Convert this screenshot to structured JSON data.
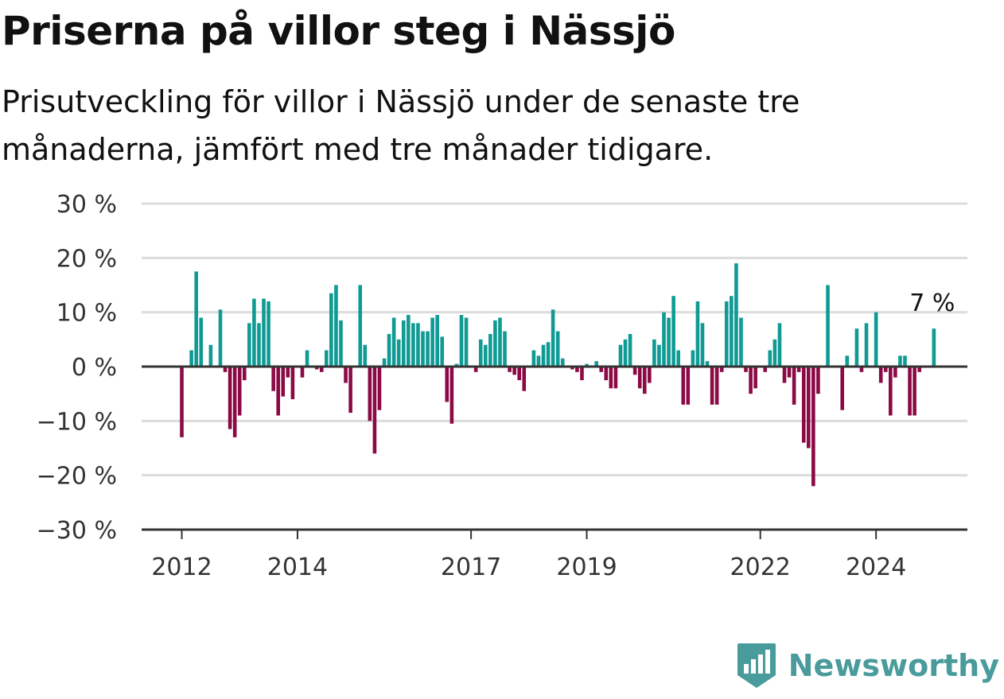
{
  "header": {
    "title": "Priserna på villor steg i Nässjö",
    "subtitle": "Prisutveckling för villor i Nässjö under de senaste tre månaderna, jämfört med tre månader tidigare."
  },
  "brand": {
    "name": "Newsworthy",
    "color": "#4a9b9c"
  },
  "colors": {
    "positive": "#0f9a94",
    "negative": "#8b0a45",
    "grid": "#dcdcdc",
    "axis": "#333333"
  },
  "chart_data": {
    "type": "bar",
    "title": "Priserna på villor steg i Nässjö",
    "subtitle": "Prisutveckling för villor i Nässjö under de senaste tre månaderna, jämfört med tre månader tidigare.",
    "x_start": "2012-01",
    "x_end": "2025-03",
    "x_ticks": [
      {
        "date": "2012-01",
        "label": "2012"
      },
      {
        "date": "2014-01",
        "label": "2014"
      },
      {
        "date": "2017-01",
        "label": "2017"
      },
      {
        "date": "2019-01",
        "label": "2019"
      },
      {
        "date": "2022-01",
        "label": "2022"
      },
      {
        "date": "2024-01",
        "label": "2024"
      }
    ],
    "y_ticks": [
      {
        "value": 30,
        "label": "30 %"
      },
      {
        "value": 20,
        "label": "20 %"
      },
      {
        "value": 10,
        "label": "10 %"
      },
      {
        "value": 0,
        "label": "0 %"
      },
      {
        "value": -10,
        "label": "−10 %"
      },
      {
        "value": -20,
        "label": "−20 %"
      },
      {
        "value": -30,
        "label": "−30 %"
      }
    ],
    "ylim": [
      -30,
      30
    ],
    "grid": true,
    "annotation": {
      "date": "2025-01",
      "value": 7,
      "label": "7 %"
    },
    "series": [
      {
        "values": [
          {
            "date": "2012-01",
            "value": -13
          },
          {
            "date": "2012-03",
            "value": 3
          },
          {
            "date": "2012-04",
            "value": 17.5
          },
          {
            "date": "2012-05",
            "value": 9
          },
          {
            "date": "2012-07",
            "value": 4
          },
          {
            "date": "2012-09",
            "value": 10.5
          },
          {
            "date": "2012-10",
            "value": -1
          },
          {
            "date": "2012-11",
            "value": -11.5
          },
          {
            "date": "2012-12",
            "value": -13
          },
          {
            "date": "2013-01",
            "value": -9
          },
          {
            "date": "2013-02",
            "value": -2.5
          },
          {
            "date": "2013-03",
            "value": 8
          },
          {
            "date": "2013-04",
            "value": 12.5
          },
          {
            "date": "2013-05",
            "value": 8
          },
          {
            "date": "2013-06",
            "value": 12.5
          },
          {
            "date": "2013-07",
            "value": 12
          },
          {
            "date": "2013-08",
            "value": -4.5
          },
          {
            "date": "2013-09",
            "value": -9
          },
          {
            "date": "2013-10",
            "value": -5.5
          },
          {
            "date": "2013-11",
            "value": -2
          },
          {
            "date": "2013-12",
            "value": -6
          },
          {
            "date": "2014-02",
            "value": -2
          },
          {
            "date": "2014-03",
            "value": 3
          },
          {
            "date": "2014-05",
            "value": -0.5
          },
          {
            "date": "2014-06",
            "value": -1
          },
          {
            "date": "2014-07",
            "value": 3
          },
          {
            "date": "2014-08",
            "value": 13.5
          },
          {
            "date": "2014-09",
            "value": 15
          },
          {
            "date": "2014-10",
            "value": 8.5
          },
          {
            "date": "2014-11",
            "value": -3
          },
          {
            "date": "2014-12",
            "value": -8.5
          },
          {
            "date": "2015-02",
            "value": 15
          },
          {
            "date": "2015-03",
            "value": 4
          },
          {
            "date": "2015-04",
            "value": -10
          },
          {
            "date": "2015-05",
            "value": -16
          },
          {
            "date": "2015-06",
            "value": -8
          },
          {
            "date": "2015-07",
            "value": 1.5
          },
          {
            "date": "2015-08",
            "value": 6
          },
          {
            "date": "2015-09",
            "value": 9
          },
          {
            "date": "2015-10",
            "value": 5
          },
          {
            "date": "2015-11",
            "value": 8.5
          },
          {
            "date": "2015-12",
            "value": 9.5
          },
          {
            "date": "2016-01",
            "value": 8
          },
          {
            "date": "2016-02",
            "value": 8
          },
          {
            "date": "2016-03",
            "value": 6.5
          },
          {
            "date": "2016-04",
            "value": 6.5
          },
          {
            "date": "2016-05",
            "value": 9
          },
          {
            "date": "2016-06",
            "value": 9.5
          },
          {
            "date": "2016-07",
            "value": 5.5
          },
          {
            "date": "2016-08",
            "value": -6.5
          },
          {
            "date": "2016-09",
            "value": -10.5
          },
          {
            "date": "2016-10",
            "value": 0.5
          },
          {
            "date": "2016-11",
            "value": 9.5
          },
          {
            "date": "2016-12",
            "value": 9
          },
          {
            "date": "2017-02",
            "value": -1
          },
          {
            "date": "2017-03",
            "value": 5
          },
          {
            "date": "2017-04",
            "value": 4
          },
          {
            "date": "2017-05",
            "value": 6
          },
          {
            "date": "2017-06",
            "value": 8.5
          },
          {
            "date": "2017-07",
            "value": 9
          },
          {
            "date": "2017-08",
            "value": 6.5
          },
          {
            "date": "2017-09",
            "value": -1
          },
          {
            "date": "2017-10",
            "value": -1.5
          },
          {
            "date": "2017-11",
            "value": -2.5
          },
          {
            "date": "2017-12",
            "value": -4.5
          },
          {
            "date": "2018-02",
            "value": 3
          },
          {
            "date": "2018-03",
            "value": 2
          },
          {
            "date": "2018-04",
            "value": 4
          },
          {
            "date": "2018-05",
            "value": 4.5
          },
          {
            "date": "2018-06",
            "value": 10.5
          },
          {
            "date": "2018-07",
            "value": 6.5
          },
          {
            "date": "2018-08",
            "value": 1.5
          },
          {
            "date": "2018-10",
            "value": -0.5
          },
          {
            "date": "2018-11",
            "value": -1
          },
          {
            "date": "2018-12",
            "value": -2.5
          },
          {
            "date": "2019-01",
            "value": 0.5
          },
          {
            "date": "2019-03",
            "value": 1
          },
          {
            "date": "2019-04",
            "value": -1
          },
          {
            "date": "2019-05",
            "value": -2.5
          },
          {
            "date": "2019-06",
            "value": -4
          },
          {
            "date": "2019-07",
            "value": -4
          },
          {
            "date": "2019-08",
            "value": 4
          },
          {
            "date": "2019-09",
            "value": 5
          },
          {
            "date": "2019-10",
            "value": 6
          },
          {
            "date": "2019-11",
            "value": -1.5
          },
          {
            "date": "2019-12",
            "value": -4
          },
          {
            "date": "2020-01",
            "value": -5
          },
          {
            "date": "2020-02",
            "value": -3
          },
          {
            "date": "2020-03",
            "value": 5
          },
          {
            "date": "2020-04",
            "value": 4
          },
          {
            "date": "2020-05",
            "value": 10
          },
          {
            "date": "2020-06",
            "value": 9
          },
          {
            "date": "2020-07",
            "value": 13
          },
          {
            "date": "2020-08",
            "value": 3
          },
          {
            "date": "2020-09",
            "value": -7
          },
          {
            "date": "2020-10",
            "value": -7
          },
          {
            "date": "2020-11",
            "value": 3
          },
          {
            "date": "2020-12",
            "value": 12
          },
          {
            "date": "2021-01",
            "value": 8
          },
          {
            "date": "2021-02",
            "value": 1
          },
          {
            "date": "2021-03",
            "value": -7
          },
          {
            "date": "2021-04",
            "value": -7
          },
          {
            "date": "2021-05",
            "value": -1
          },
          {
            "date": "2021-06",
            "value": 12
          },
          {
            "date": "2021-07",
            "value": 13
          },
          {
            "date": "2021-08",
            "value": 19
          },
          {
            "date": "2021-09",
            "value": 9
          },
          {
            "date": "2021-10",
            "value": -1
          },
          {
            "date": "2021-11",
            "value": -5
          },
          {
            "date": "2021-12",
            "value": -4
          },
          {
            "date": "2022-02",
            "value": -1
          },
          {
            "date": "2022-03",
            "value": 3
          },
          {
            "date": "2022-04",
            "value": 5
          },
          {
            "date": "2022-05",
            "value": 8
          },
          {
            "date": "2022-06",
            "value": -3
          },
          {
            "date": "2022-07",
            "value": -2
          },
          {
            "date": "2022-08",
            "value": -7
          },
          {
            "date": "2022-09",
            "value": -1
          },
          {
            "date": "2022-10",
            "value": -14
          },
          {
            "date": "2022-11",
            "value": -15
          },
          {
            "date": "2022-12",
            "value": -22
          },
          {
            "date": "2023-01",
            "value": -5
          },
          {
            "date": "2023-03",
            "value": 15
          },
          {
            "date": "2023-06",
            "value": -8
          },
          {
            "date": "2023-07",
            "value": 2
          },
          {
            "date": "2023-09",
            "value": 7
          },
          {
            "date": "2023-10",
            "value": -1
          },
          {
            "date": "2023-11",
            "value": 8
          },
          {
            "date": "2024-01",
            "value": 10
          },
          {
            "date": "2024-02",
            "value": -3
          },
          {
            "date": "2024-03",
            "value": -1
          },
          {
            "date": "2024-04",
            "value": -9
          },
          {
            "date": "2024-05",
            "value": -2
          },
          {
            "date": "2024-06",
            "value": 2
          },
          {
            "date": "2024-07",
            "value": 2
          },
          {
            "date": "2024-08",
            "value": -9
          },
          {
            "date": "2024-09",
            "value": -9
          },
          {
            "date": "2024-10",
            "value": -1
          },
          {
            "date": "2025-01",
            "value": 7
          }
        ]
      }
    ]
  }
}
